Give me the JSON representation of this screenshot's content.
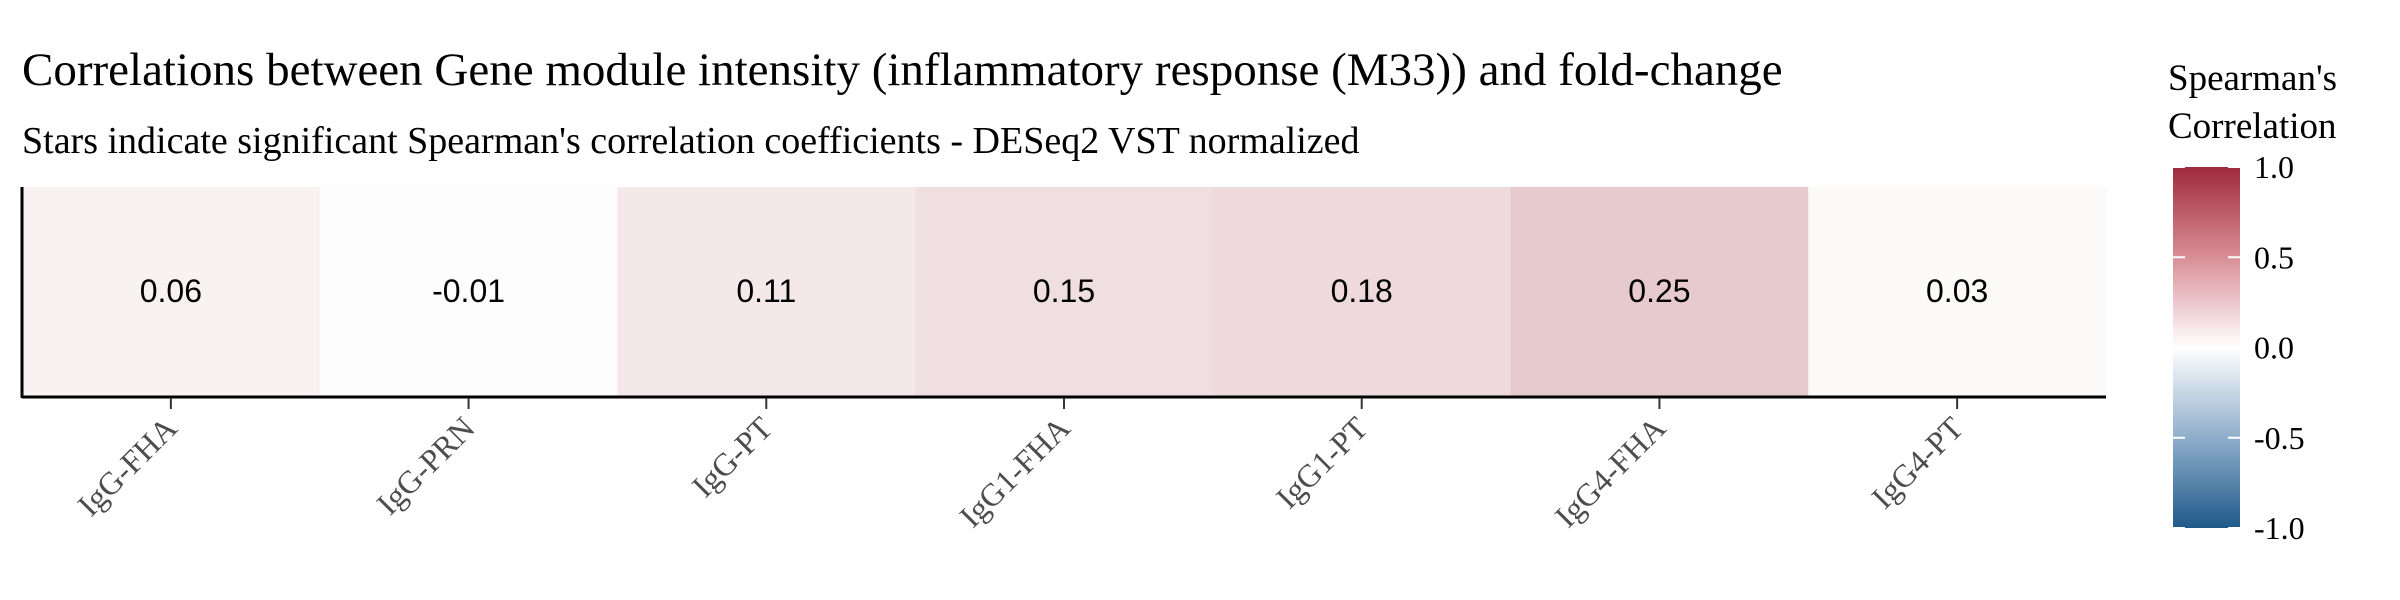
{
  "chart_data": {
    "type": "heatmap",
    "title": "Correlations between Gene module intensity (inflammatory response (M33)) and fold-change",
    "subtitle": "Stars indicate significant Spearman's correlation coefficients - DESeq2 VST normalized",
    "xlabel": "",
    "ylabel": "",
    "categories": [
      "IgG-FHA",
      "IgG-PRN",
      "IgG-PT",
      "IgG1-FHA",
      "IgG1-PT",
      "IgG4-FHA",
      "IgG4-PT"
    ],
    "values": [
      0.06,
      -0.01,
      0.11,
      0.15,
      0.18,
      0.25,
      0.03
    ],
    "value_labels": [
      "0.06",
      "-0.01",
      "0.11",
      "0.15",
      "0.18",
      "0.25",
      "0.03"
    ],
    "legend": {
      "title_lines": [
        "Spearman's",
        "Correlation"
      ],
      "position": "right",
      "range": [
        -1.0,
        1.0
      ],
      "ticks": [
        1.0,
        0.5,
        0.0,
        -0.5,
        -1.0
      ],
      "tick_labels": [
        "1.0",
        "0.5",
        "0.0",
        "-0.5",
        "-1.0"
      ]
    },
    "colors": {
      "high": "#9E2A3A",
      "mid": "#FFFFFF",
      "low": "#1F5A8A"
    }
  }
}
